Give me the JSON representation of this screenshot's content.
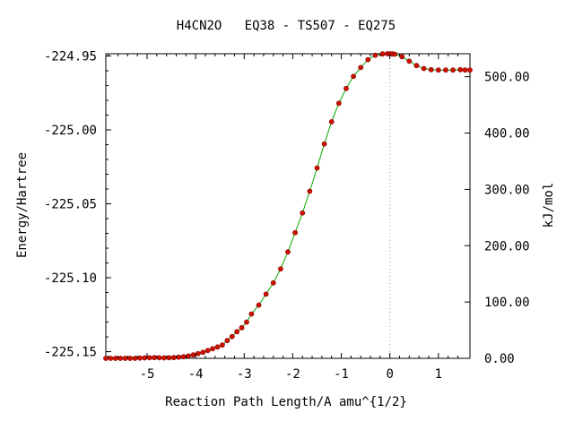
{
  "chart_data": {
    "type": "line",
    "title": "H4CN2O   EQ38 - TS507 - EQ275",
    "xlabel": "Reaction Path Length/A amu^{1/2}",
    "ylabel": "Energy/Hartree",
    "y2label": "kJ/mol",
    "xlim": [
      -5.85,
      1.65
    ],
    "ylim": [
      -225.1545,
      -224.9485
    ],
    "y2lim": [
      0.0,
      540.8
    ],
    "x_ticks": [
      -5,
      -4,
      -3,
      -2,
      -1,
      0,
      1
    ],
    "x_tick_labels": [
      "-5",
      "-4",
      "-3",
      "-2",
      "-1",
      "0",
      "1"
    ],
    "y_ticks": [
      -224.95,
      -225.0,
      -225.05,
      -225.1,
      -225.15
    ],
    "y_tick_labels": [
      "-224.95",
      "-225.00",
      "-225.05",
      "-225.10",
      "-225.15"
    ],
    "y2_ticks": [
      500,
      400,
      300,
      200,
      100,
      0
    ],
    "y2_tick_labels": [
      "500.00",
      "400.00",
      "300.00",
      "200.00",
      "100.00",
      "0.00"
    ],
    "ts_marker_x": 0.0,
    "grid": false,
    "colors": {
      "line": "#00aa00",
      "points": "#cc1100",
      "ts_line": "#999999"
    },
    "series": [
      {
        "x": [
          -5.85,
          -5.75,
          -5.65,
          -5.55,
          -5.45,
          -5.35,
          -5.25,
          -5.15,
          -5.05,
          -4.95,
          -4.85,
          -4.75,
          -4.65,
          -4.55,
          -4.45,
          -4.35,
          -4.25,
          -4.15,
          -4.05,
          -3.95,
          -3.85,
          -3.75,
          -3.65,
          -3.55,
          -3.45,
          -3.35,
          -3.25,
          -3.15,
          -3.05,
          -2.95,
          -2.85,
          -2.7,
          -2.55,
          -2.4,
          -2.25,
          -2.1,
          -1.95,
          -1.8,
          -1.65,
          -1.5,
          -1.35,
          -1.2,
          -1.05,
          -0.9,
          -0.75,
          -0.6,
          -0.45,
          -0.3,
          -0.15,
          -0.05,
          0.0,
          0.05,
          0.1,
          0.25,
          0.4,
          0.55,
          0.7,
          0.85,
          1.0,
          1.15,
          1.3,
          1.45,
          1.55,
          1.65
        ],
        "y": [
          -225.1545,
          -225.1545,
          -225.1545,
          -225.1545,
          -225.1545,
          -225.1545,
          -225.1545,
          -225.1543,
          -225.1542,
          -225.1541,
          -225.154,
          -225.1541,
          -225.1542,
          -225.1541,
          -225.154,
          -225.1537,
          -225.1534,
          -225.1529,
          -225.1522,
          -225.1513,
          -225.1504,
          -225.1492,
          -225.148,
          -225.1468,
          -225.1455,
          -225.1425,
          -225.1398,
          -225.1365,
          -225.1338,
          -225.13,
          -225.1245,
          -225.1185,
          -225.1111,
          -225.1035,
          -225.094,
          -225.0825,
          -225.0695,
          -225.0562,
          -225.0415,
          -225.0258,
          -225.0095,
          -224.9945,
          -224.982,
          -224.972,
          -224.9638,
          -224.9578,
          -224.9525,
          -224.9495,
          -224.9486,
          -224.9485,
          -224.9485,
          -224.9486,
          -224.9488,
          -224.9505,
          -224.9535,
          -224.9565,
          -224.9585,
          -224.9593,
          -224.9595,
          -224.9595,
          -224.9595,
          -224.9593,
          -224.9595,
          -224.9595
        ]
      }
    ]
  }
}
